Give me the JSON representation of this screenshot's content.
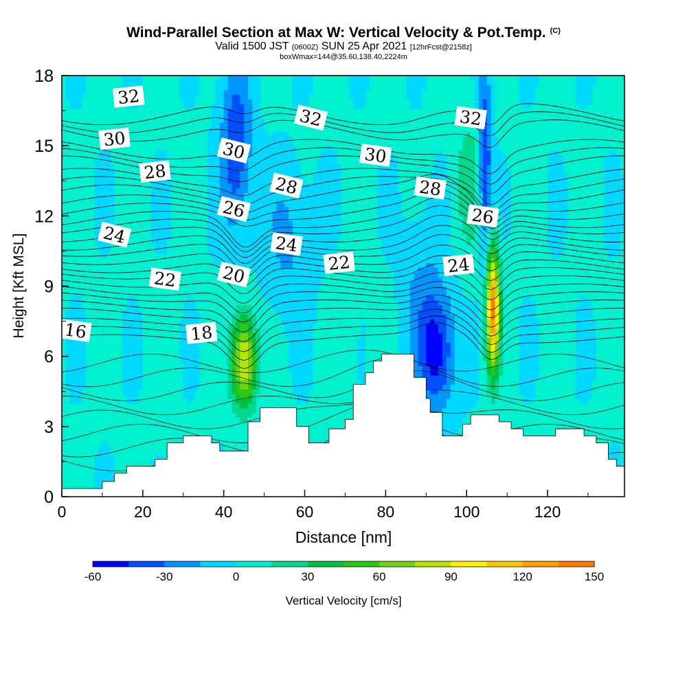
{
  "header": {
    "title": "Wind-Parallel Section at Max W: Vertical Velocity & Pot.Temp.",
    "copyright": "(C)",
    "valid_prefix": "Valid 1500 JST",
    "valid_utc": "(0600Z)",
    "valid_date": "SUN 25 Apr 2021",
    "forecast": "[12hrFcst@2158z]",
    "box_info": "boxWmax=144@35.60,138.40,2224m"
  },
  "chart_data": {
    "type": "heatmap",
    "xlabel": "Distance [nm]",
    "ylabel": "Height [Kft MSL]",
    "xlim": [
      0,
      139
    ],
    "ylim": [
      0,
      18
    ],
    "x_ticks": [
      0,
      20,
      40,
      60,
      80,
      100,
      120
    ],
    "y_ticks": [
      0,
      3,
      6,
      9,
      12,
      15,
      18
    ],
    "colorbar": {
      "label": "Vertical Velocity [cm/s]",
      "range": [
        -60,
        150
      ],
      "step": 15,
      "tick_labels": [
        "-60",
        "-30",
        "0",
        "30",
        "60",
        "90",
        "120",
        "150"
      ],
      "colors": [
        "#0000ff",
        "#0050ff",
        "#0096ff",
        "#00d8ff",
        "#00f0d0",
        "#00d890",
        "#00c040",
        "#28c814",
        "#70d214",
        "#b4e600",
        "#fff000",
        "#ffc800",
        "#ffa000",
        "#ff7800",
        "#ff5000",
        "#ff2800",
        "#e60000",
        "#c80032",
        "#a00064",
        "#780096",
        "#5a00a0"
      ]
    },
    "terrain_kft": [
      [
        0,
        0.35
      ],
      [
        6,
        0.35
      ],
      [
        10,
        0.65
      ],
      [
        13,
        1.0
      ],
      [
        16,
        1.3
      ],
      [
        20,
        1.3
      ],
      [
        23,
        1.6
      ],
      [
        26,
        2.3
      ],
      [
        30,
        2.6
      ],
      [
        35,
        2.6
      ],
      [
        37,
        2.3
      ],
      [
        39,
        1.95
      ],
      [
        42,
        1.95
      ],
      [
        45,
        1.95
      ],
      [
        46,
        3.2
      ],
      [
        49,
        3.8
      ],
      [
        55,
        3.8
      ],
      [
        58,
        3.0
      ],
      [
        61,
        2.3
      ],
      [
        64,
        2.3
      ],
      [
        66,
        2.9
      ],
      [
        70,
        3.3
      ],
      [
        72,
        4.8
      ],
      [
        75,
        5.3
      ],
      [
        77,
        5.8
      ],
      [
        79,
        6.1
      ],
      [
        84,
        6.1
      ],
      [
        87,
        5.1
      ],
      [
        90,
        4.2
      ],
      [
        91,
        3.6
      ],
      [
        94,
        2.6
      ],
      [
        96,
        2.6
      ],
      [
        99,
        3.1
      ],
      [
        101,
        3.5
      ],
      [
        105,
        3.5
      ],
      [
        108,
        3.2
      ],
      [
        111,
        2.9
      ],
      [
        114,
        2.6
      ],
      [
        120,
        2.6
      ],
      [
        122,
        2.9
      ],
      [
        126,
        2.9
      ],
      [
        129,
        2.6
      ],
      [
        132,
        2.3
      ],
      [
        135,
        1.6
      ],
      [
        137,
        1.3
      ],
      [
        139,
        1.3
      ]
    ],
    "updrafts": [
      {
        "x": 45,
        "y": 5.8,
        "sx": 3.0,
        "sy": 1.9,
        "w": 95
      },
      {
        "x": 106.5,
        "y": 8.0,
        "sx": 1.6,
        "sy": 2.6,
        "w": 135
      },
      {
        "x": 100.5,
        "y": 13.5,
        "sx": 3.5,
        "sy": 3.2,
        "w": 20
      },
      {
        "x": 80,
        "y": 7.5,
        "sx": 4,
        "sy": 3,
        "w": 5
      },
      {
        "x": 70,
        "y": 6.5,
        "sx": 3,
        "sy": 2.5,
        "w": 10
      },
      {
        "x": 26,
        "y": 5,
        "sx": 3,
        "sy": 3,
        "w": 5
      }
    ],
    "downdrafts": [
      {
        "x": 92.5,
        "y": 6.2,
        "sx": 4.5,
        "sy": 2.6,
        "w": -55
      },
      {
        "x": 43,
        "y": 15,
        "sx": 3.8,
        "sy": 3.6,
        "w": -45
      },
      {
        "x": 104.5,
        "y": 14.5,
        "sx": 1.6,
        "sy": 4,
        "w": -50
      },
      {
        "x": 56,
        "y": 11,
        "sx": 6,
        "sy": 3,
        "w": -20
      },
      {
        "x": 88,
        "y": 9,
        "sx": 6,
        "sy": 3,
        "w": -15
      }
    ],
    "theta_levels": [
      {
        "value": 16,
        "base": 7.1,
        "mx": 3.4,
        "my": 7.1
      },
      {
        "value": 18,
        "base": 8.2,
        "mx": 34.5,
        "my": 7.0
      },
      {
        "value": 20,
        "base": 9.2,
        "mx": 42.5,
        "my": 9.5
      },
      {
        "value": 22,
        "base": 10.2,
        "mx": 25.5,
        "my": 9.3
      },
      {
        "value": 22,
        "base": 10.2,
        "mx": 68.5,
        "my": 10.0
      },
      {
        "value": 24,
        "base": 11.2,
        "mx": 13,
        "my": 11.2
      },
      {
        "value": 24,
        "base": 11.2,
        "mx": 55.5,
        "my": 10.8
      },
      {
        "value": 24,
        "base": 11.2,
        "mx": 98,
        "my": 9.9
      },
      {
        "value": 26,
        "base": 12.2,
        "mx": 42.5,
        "my": 12.3
      },
      {
        "value": 26,
        "base": 12.2,
        "mx": 104,
        "my": 12.0
      },
      {
        "value": 28,
        "base": 13.3,
        "mx": 23,
        "my": 13.9
      },
      {
        "value": 28,
        "base": 13.3,
        "mx": 55.5,
        "my": 13.3
      },
      {
        "value": 28,
        "base": 13.3,
        "mx": 91,
        "my": 13.2
      },
      {
        "value": 30,
        "base": 14.5,
        "mx": 13,
        "my": 15.3
      },
      {
        "value": 30,
        "base": 14.5,
        "mx": 42.5,
        "my": 14.8
      },
      {
        "value": 30,
        "base": 14.5,
        "mx": 77.5,
        "my": 14.6
      },
      {
        "value": 32,
        "base": 16.0,
        "mx": 16.5,
        "my": 17.1
      },
      {
        "value": 32,
        "base": 16.0,
        "mx": 61.5,
        "my": 16.2
      },
      {
        "value": 32,
        "base": 16.0,
        "mx": 101,
        "my": 16.2
      }
    ]
  }
}
